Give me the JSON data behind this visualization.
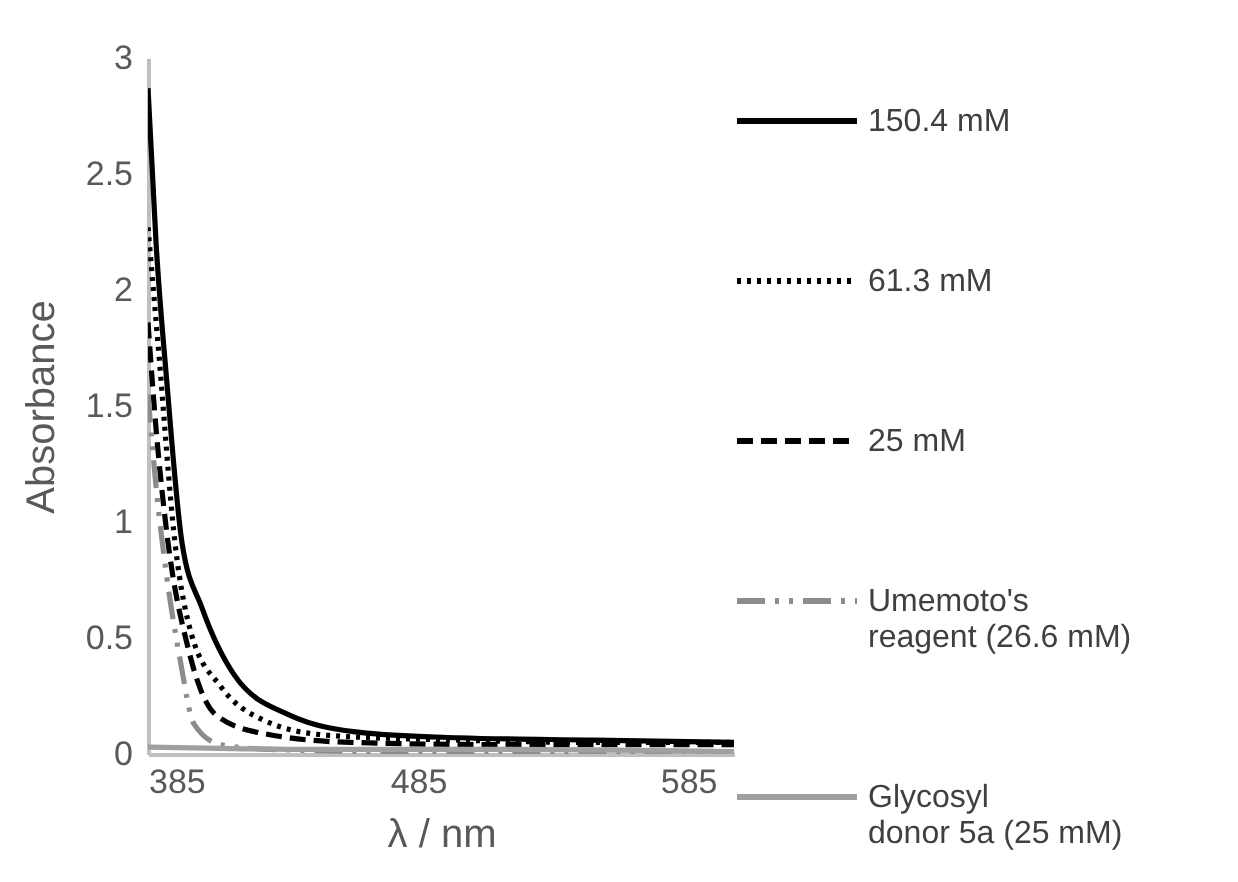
{
  "chart_data": {
    "type": "line",
    "xlabel": "λ / nm",
    "ylabel": "Absorbance",
    "xlim": [
      385,
      602
    ],
    "ylim": [
      0,
      3
    ],
    "xticks": [
      385,
      485,
      585
    ],
    "yticks": [
      0,
      0.5,
      1,
      1.5,
      2,
      2.5,
      3
    ],
    "grid": false,
    "legend": "right",
    "marker": "none",
    "series": [
      {
        "name": "150.4 mM",
        "color": "#000000",
        "line_style": "solid",
        "x": [
          385,
          388,
          392,
          397.6,
          405,
          417,
          437,
          466,
          500,
          550,
          602
        ],
        "values": [
          2.87,
          2.2,
          1.6,
          0.91,
          0.63,
          0.34,
          0.17,
          0.09,
          0.07,
          0.06,
          0.05
        ]
      },
      {
        "name": "61.3 mM",
        "color": "#000000",
        "line_style": "dotted",
        "x": [
          385,
          388.7,
          395,
          401,
          412,
          427,
          452,
          500,
          550,
          602
        ],
        "values": [
          2.27,
          1.77,
          0.91,
          0.52,
          0.29,
          0.15,
          0.08,
          0.06,
          0.05,
          0.05
        ]
      },
      {
        "name": "25 mM",
        "color": "#000000",
        "line_style": "dashed",
        "x": [
          385,
          388,
          392,
          400,
          410,
          427,
          460,
          520,
          602
        ],
        "values": [
          1.86,
          1.4,
          0.95,
          0.45,
          0.17,
          0.09,
          0.05,
          0.04,
          0.04
        ]
      },
      {
        "name": "Umemoto's\nreagent (26.6 mM)",
        "color": "#8c8c8c",
        "line_style": "dashdot",
        "x": [
          385,
          388,
          392,
          397,
          402,
          412,
          430,
          480,
          540,
          602
        ],
        "values": [
          1.55,
          1.15,
          0.76,
          0.4,
          0.13,
          0.04,
          0.02,
          0.01,
          0.01,
          0.01
        ]
      },
      {
        "name": "Glycosyl\ndonor 5a (25 mM)",
        "color": "#a0a0a0",
        "line_style": "solid",
        "x": [
          385,
          450,
          520,
          602
        ],
        "values": [
          0.03,
          0.02,
          0.02,
          0.01
        ]
      }
    ]
  }
}
